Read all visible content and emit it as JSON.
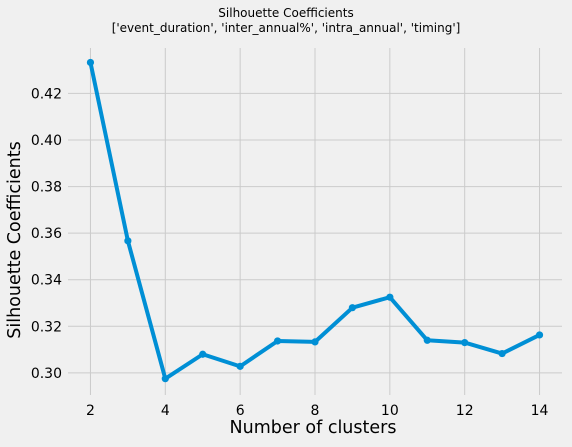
{
  "chart_data": {
    "type": "line",
    "title": "Silhouette Coefficients",
    "subtitle": "['event_duration', 'inter_annual%', 'intra_annual', 'timing']",
    "xlabel": "Number of clusters",
    "ylabel": "Silhouette Coefficients",
    "x": [
      2,
      3,
      4,
      5,
      6,
      7,
      8,
      9,
      10,
      11,
      12,
      13,
      14
    ],
    "series": [
      {
        "values": [
          0.4333,
          0.3567,
          0.2975,
          0.308,
          0.3028,
          0.3137,
          0.3133,
          0.328,
          0.3325,
          0.314,
          0.313,
          0.3083,
          0.3163
        ]
      }
    ],
    "xlim": [
      1.4,
      14.6
    ],
    "ylim": [
      0.2905,
      0.4395
    ],
    "xticks": [
      2,
      4,
      6,
      8,
      10,
      12,
      14
    ],
    "xtick_labels": [
      "2",
      "4",
      "6",
      "8",
      "10",
      "12",
      "14"
    ],
    "yticks": [
      0.3,
      0.32,
      0.34,
      0.36,
      0.38,
      0.4,
      0.42
    ],
    "ytick_labels": [
      "0.30",
      "0.32",
      "0.34",
      "0.36",
      "0.38",
      "0.40",
      "0.42"
    ],
    "grid": true,
    "legend": "none",
    "colors": {
      "line": "#008fd5",
      "grid": "#cbcbcb",
      "background": "#f0f0f0"
    }
  }
}
